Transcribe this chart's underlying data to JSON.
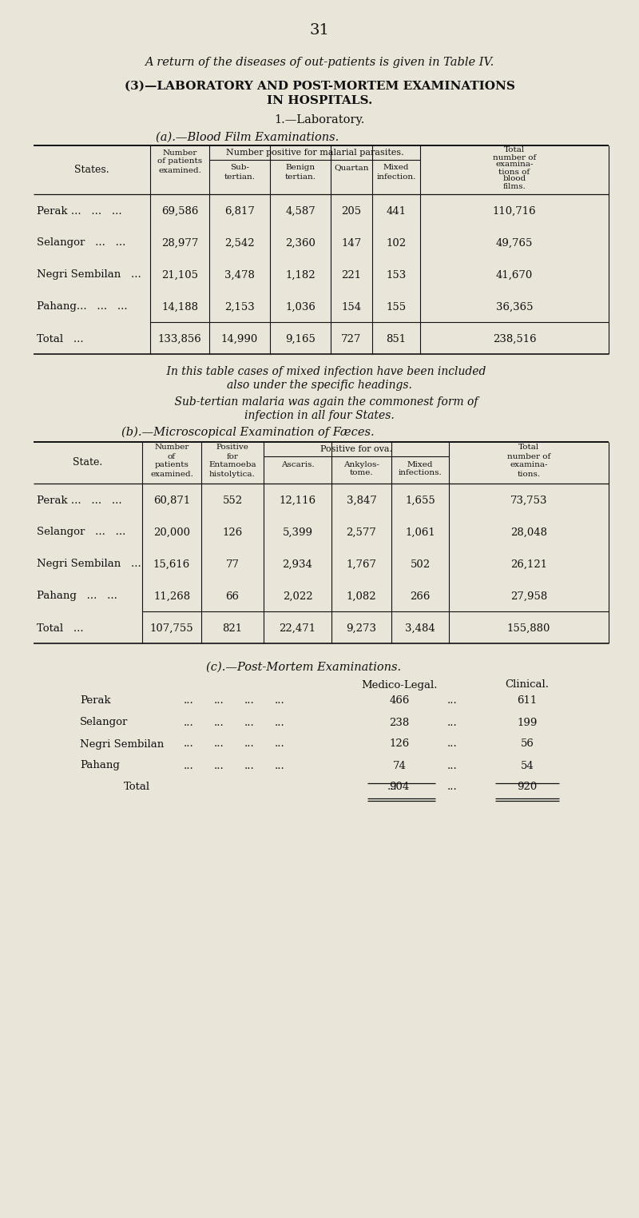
{
  "bg_color": "#e9e5d9",
  "page_number": "31",
  "intro_text": "A return of the diseases of out-patients is given in Table IV.",
  "section_title_line1": "(3)—LABORATORY AND POST-MORTEM EXAMINATIONS",
  "section_title_line2": "IN HOSPITALS.",
  "subsection1": "1.—Laboratory.",
  "table_a_title": "(a).—Blood Film Examinations.",
  "table_a_spanning_header": "Number positive for malarial parasites.",
  "table_a_rows": [
    [
      "Perak ...   ...   ...",
      "69,586",
      "6,817",
      "4,587",
      "205",
      "441",
      "110,716"
    ],
    [
      "Selangor   ...   ...",
      "28,977",
      "2,542",
      "2,360",
      "147",
      "102",
      "49,765"
    ],
    [
      "Negri Sembilan   ...",
      "21,105",
      "3,478",
      "1,182",
      "221",
      "153",
      "41,670"
    ],
    [
      "Pahang...   ...   ...",
      "14,188",
      "2,153",
      "1,036",
      "154",
      "155",
      "36,365"
    ],
    [
      "Total   ...",
      "133,856",
      "14,990",
      "9,165",
      "727",
      "851",
      "238,516"
    ]
  ],
  "note1": "In this table cases of mixed infection have been included",
  "note1b": "also under the specific headings.",
  "note2": "Sub-tertian malaria was again the commonest form of",
  "note2b": "infection in all four States.",
  "table_b_title": "(b).—Microscopical Examination of Fæces.",
  "table_b_spanning_header": "Positive for ova.",
  "table_b_rows": [
    [
      "Perak ...   ...   ...",
      "60,871",
      "552",
      "12,116",
      "3,847",
      "1,655",
      "73,753"
    ],
    [
      "Selangor   ...   ...",
      "20,000",
      "126",
      "5,399",
      "2,577",
      "1,061",
      "28,048"
    ],
    [
      "Negri Sembilan   ...",
      "15,616",
      "77",
      "2,934",
      "1,767",
      "502",
      "26,121"
    ],
    [
      "Pahang   ...   ...",
      "11,268",
      "66",
      "2,022",
      "1,082",
      "266",
      "27,958"
    ],
    [
      "Total   ...",
      "107,755",
      "821",
      "22,471",
      "9,273",
      "3,484",
      "155,880"
    ]
  ],
  "table_c_title": "(c).—Post-Mortem Examinations.",
  "table_c_rows": [
    [
      "Perak",
      "466",
      "611"
    ],
    [
      "Selangor",
      "238",
      "199"
    ],
    [
      "Negri Sembilan",
      "126",
      "56"
    ],
    [
      "Pahang",
      "74",
      "54"
    ],
    [
      "Total",
      "904",
      "920"
    ]
  ]
}
